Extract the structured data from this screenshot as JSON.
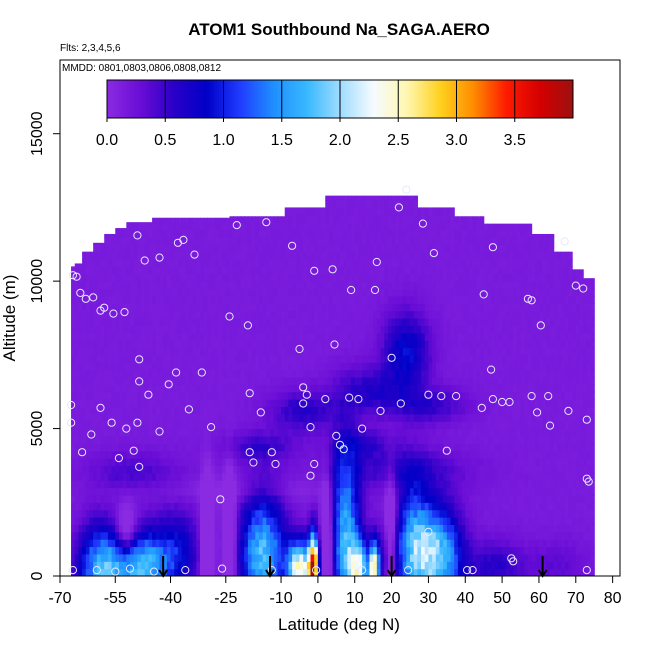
{
  "chart_data": {
    "type": "heatmap",
    "title": "ATOM1 Southbound Na_SAGA.AERO",
    "flights_note": "Flts: 2,3,4,5,6",
    "dates_note": "MMDD: 0801,0803,0806,0808,0812",
    "xlabel": "Latitude (deg N)",
    "ylabel": "Altitude (m)",
    "xlim": [
      -70,
      82
    ],
    "ylim": [
      0,
      17500
    ],
    "x_ticks": [
      -70,
      -55,
      -40,
      -25,
      -10,
      0,
      10,
      20,
      30,
      40,
      50,
      60,
      70,
      80
    ],
    "x_tick_labels": [
      "-70",
      "-55",
      "-40",
      "-25",
      "-10",
      "0",
      "10",
      "20",
      "30",
      "40",
      "50",
      "60",
      "70",
      "80"
    ],
    "y_ticks": [
      0,
      5000,
      10000,
      15000
    ],
    "y_tick_labels": [
      "0",
      "5000",
      "10000",
      "15000"
    ],
    "colorbar": {
      "min": 0,
      "max": 4,
      "ticks": [
        0,
        0.5,
        1,
        1.5,
        2,
        2.5,
        3,
        3.5
      ],
      "tick_labels": [
        "0.0",
        "0.5",
        "1.0",
        "1.5",
        "2.0",
        "2.5",
        "3.0",
        "3.5"
      ],
      "colors": [
        "#8a2be2",
        "#6a0dd6",
        "#2a00c8",
        "#0000c8",
        "#1f3cff",
        "#1e8fff",
        "#38b8ff",
        "#9fdcff",
        "#f6fbff",
        "#fff7b0",
        "#ffd21f",
        "#ff8c00",
        "#ff1a00",
        "#d40000",
        "#9c1010"
      ]
    },
    "descent_arrows_lat": [
      -42,
      -13,
      20,
      61
    ],
    "observations": [
      [
        -66.5,
        10200
      ],
      [
        -65.5,
        10150
      ],
      [
        -64.5,
        9600
      ],
      [
        -63,
        9400
      ],
      [
        -61,
        9450
      ],
      [
        -59,
        9000
      ],
      [
        -58,
        9100
      ],
      [
        -55.5,
        8900
      ],
      [
        -52.5,
        8950
      ],
      [
        -67,
        5800
      ],
      [
        -67,
        5200
      ],
      [
        -66.5,
        200
      ],
      [
        -64,
        4200
      ],
      [
        -61.5,
        4800
      ],
      [
        -59,
        5700
      ],
      [
        -56,
        5200
      ],
      [
        -54,
        4000
      ],
      [
        -52,
        5000
      ],
      [
        -50,
        4250
      ],
      [
        -49,
        5200
      ],
      [
        -48.5,
        3700
      ],
      [
        -60,
        200
      ],
      [
        -55,
        150
      ],
      [
        -51,
        250
      ],
      [
        -44.5,
        150
      ],
      [
        -49,
        11550
      ],
      [
        -47,
        10700
      ],
      [
        -43,
        10800
      ],
      [
        -38,
        11300
      ],
      [
        -36.5,
        11400
      ],
      [
        -33.5,
        10900
      ],
      [
        -48.5,
        7350
      ],
      [
        -48.5,
        6600
      ],
      [
        -46,
        6150
      ],
      [
        -43,
        4900
      ],
      [
        -40.5,
        6500
      ],
      [
        -38.5,
        6900
      ],
      [
        -35,
        5650
      ],
      [
        -31.5,
        6900
      ],
      [
        -29,
        5050
      ],
      [
        -26.5,
        2600
      ],
      [
        -26,
        250
      ],
      [
        -36,
        200
      ],
      [
        -24,
        8800
      ],
      [
        -22,
        11900
      ],
      [
        -19,
        8500
      ],
      [
        -18.5,
        6200
      ],
      [
        -14,
        12000
      ],
      [
        -15.5,
        5550
      ],
      [
        -17.5,
        3850
      ],
      [
        -18.5,
        4200
      ],
      [
        -12.5,
        4200
      ],
      [
        -11.5,
        3800
      ],
      [
        -12.5,
        200
      ],
      [
        -7,
        11200
      ],
      [
        -5,
        7700
      ],
      [
        -4,
        6400
      ],
      [
        -4,
        5850
      ],
      [
        -3,
        6150
      ],
      [
        -1,
        10350
      ],
      [
        -2,
        5050
      ],
      [
        -2,
        3400
      ],
      [
        -1,
        3800
      ],
      [
        -0.5,
        200
      ],
      [
        2,
        6000
      ],
      [
        4,
        10400
      ],
      [
        4.5,
        7850
      ],
      [
        5,
        4750
      ],
      [
        6,
        4450
      ],
      [
        7,
        4300
      ],
      [
        8.5,
        6050
      ],
      [
        9,
        9700
      ],
      [
        11,
        6000
      ],
      [
        12,
        5000
      ],
      [
        12,
        200
      ],
      [
        15.5,
        9700
      ],
      [
        16,
        10650
      ],
      [
        17,
        5600
      ],
      [
        20,
        7400
      ],
      [
        22,
        12500
      ],
      [
        22.5,
        5850
      ],
      [
        24,
        13100
      ],
      [
        24.5,
        200
      ],
      [
        28.5,
        11950
      ],
      [
        30,
        6150
      ],
      [
        30,
        1500
      ],
      [
        31.5,
        10950
      ],
      [
        33.5,
        6100
      ],
      [
        35,
        4250
      ],
      [
        37.5,
        6100
      ],
      [
        40.5,
        200
      ],
      [
        42,
        200
      ],
      [
        44.5,
        5700
      ],
      [
        45,
        9550
      ],
      [
        47,
        7000
      ],
      [
        47.5,
        6000
      ],
      [
        47.5,
        11150
      ],
      [
        50,
        5900
      ],
      [
        52,
        5900
      ],
      [
        52.5,
        600
      ],
      [
        53,
        500
      ],
      [
        57,
        9400
      ],
      [
        58,
        9350
      ],
      [
        58,
        6100
      ],
      [
        59.5,
        5550
      ],
      [
        60.5,
        8500
      ],
      [
        62.5,
        6100
      ],
      [
        63,
        5100
      ],
      [
        67,
        11350
      ],
      [
        68,
        5600
      ],
      [
        70,
        9850
      ],
      [
        72,
        9750
      ],
      [
        73,
        5300
      ],
      [
        73,
        3300
      ],
      [
        73.5,
        3200
      ],
      [
        73,
        200
      ]
    ]
  }
}
